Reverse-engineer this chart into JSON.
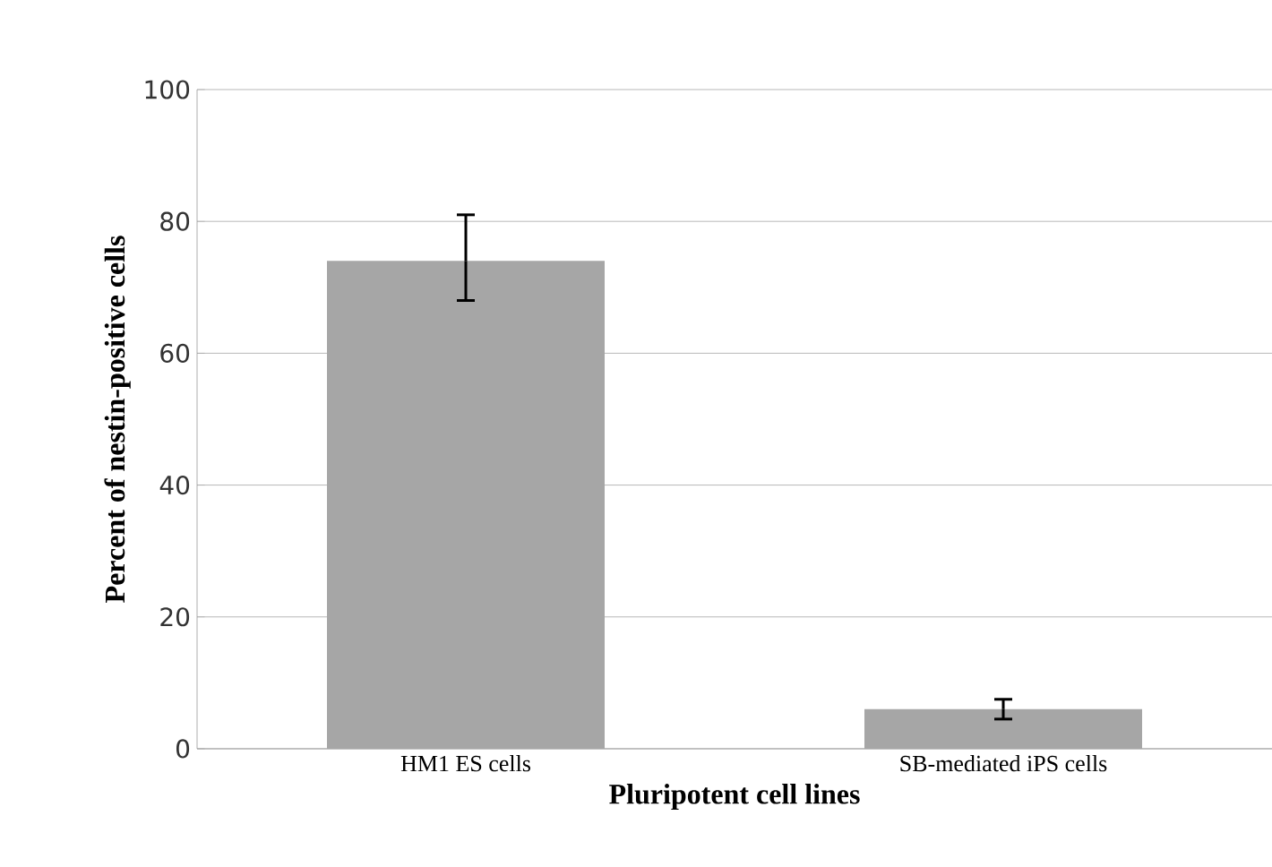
{
  "chart_data": {
    "type": "bar",
    "xlabel": "Pluripotent cell lines",
    "ylabel": "Percent of nestin-positive cells",
    "categories": [
      "HM1 ES cells",
      "SB-mediated iPS cells"
    ],
    "values": [
      74,
      6
    ],
    "errors": [
      [
        68,
        81
      ],
      [
        4.5,
        7.5
      ]
    ],
    "color": "#a6a6a6",
    "ylim": [
      0,
      100
    ],
    "yticks": [
      0,
      20,
      40,
      60,
      80,
      100
    ],
    "grid": "y"
  }
}
